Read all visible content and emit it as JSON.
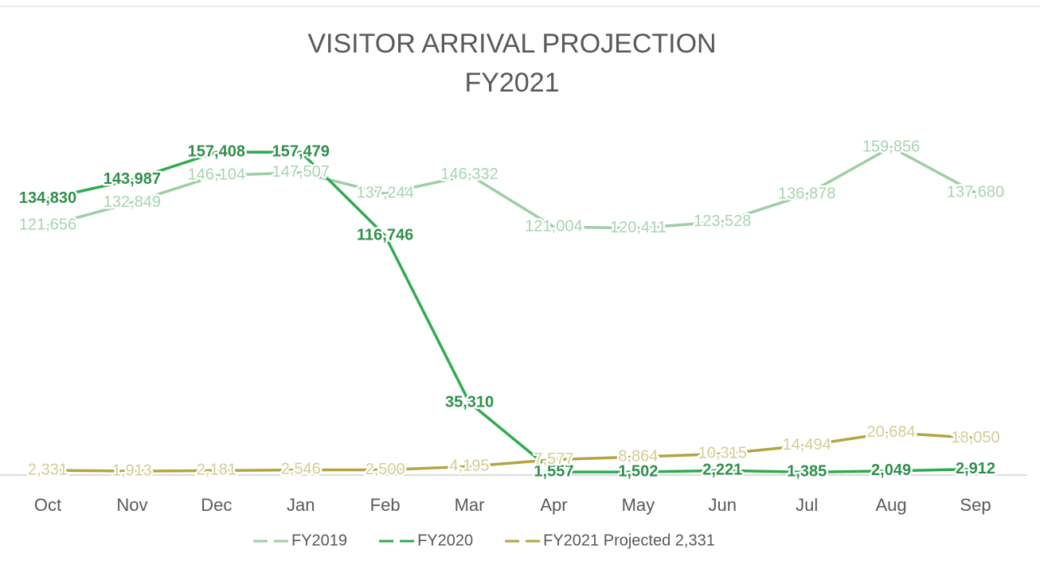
{
  "chart_data": {
    "type": "line",
    "title": "VISITOR ARRIVAL PROJECTION",
    "subtitle": "FY2021",
    "categories": [
      "Oct",
      "Nov",
      "Dec",
      "Jan",
      "Feb",
      "Mar",
      "Apr",
      "May",
      "Jun",
      "Jul",
      "Aug",
      "Sep"
    ],
    "series": [
      {
        "name": "FY2019",
        "color": "#9dcfa6",
        "label_color": "#a8d4b0",
        "bold": false,
        "values": [
          121656,
          132849,
          146104,
          147507,
          137244,
          146332,
          121004,
          120411,
          123528,
          136878,
          159856,
          137680
        ],
        "value_labels": [
          "121,656",
          "132,849",
          "146,104",
          "147,507",
          "137,244",
          "146,332",
          "121,004",
          "120,411",
          "123,528",
          "136,878",
          "159,856",
          "137,680"
        ]
      },
      {
        "name": "FY2020",
        "color": "#2eab50",
        "label_color": "#2f8f4c",
        "bold": true,
        "values": [
          134830,
          143987,
          157408,
          157479,
          116746,
          35310,
          1557,
          1502,
          2221,
          1385,
          2049,
          2912
        ],
        "value_labels": [
          "134,830",
          "143,987",
          "157,408",
          "157,479",
          "116,746",
          "35,310",
          "1,557",
          "1,502",
          "2,221",
          "1,385",
          "2,049",
          "2,912"
        ]
      },
      {
        "name": "FY2021 Projected 2,331",
        "color": "#b3a53f",
        "label_color": "#d3cd95",
        "bold": false,
        "values": [
          2331,
          1913,
          2181,
          2546,
          2500,
          4195,
          7577,
          8864,
          10315,
          14494,
          20684,
          18050
        ],
        "value_labels": [
          "2,331",
          "1,913",
          "2,181",
          "2,546",
          "2,500",
          "4,195",
          "7,577",
          "8,864",
          "10,315",
          "14,494",
          "20,684",
          "18,050"
        ]
      }
    ],
    "legend": "bottom"
  }
}
